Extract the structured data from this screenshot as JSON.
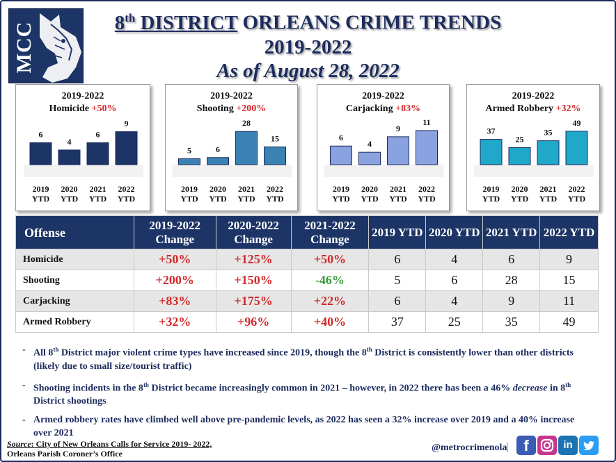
{
  "logo": {
    "text": "MCC"
  },
  "title": {
    "line1_sup": "th",
    "line1_district": "8",
    "line1_district_word": " DISTRICT",
    "line1_rest": " ORLEANS CRIME TRENDS",
    "line2": "2019-2022",
    "line3": "As of August 28, 2022"
  },
  "chart_data": [
    {
      "type": "bar",
      "title": "2019-2022",
      "subtitle": "Homicide",
      "change": "+50%",
      "categories": [
        "2019 YTD",
        "2020 YTD",
        "2021 YTD",
        "2022 YTD"
      ],
      "values": [
        6,
        4,
        6,
        9
      ],
      "ylim": [
        0,
        11
      ],
      "bar_color": "#1d3466"
    },
    {
      "type": "bar",
      "title": "2019-2022",
      "subtitle": "Shooting",
      "change": "+200%",
      "categories": [
        "2019 YTD",
        "2020 YTD",
        "2021 YTD",
        "2022 YTD"
      ],
      "values": [
        5,
        6,
        28,
        15
      ],
      "ylim": [
        0,
        34
      ],
      "bar_color": "#3a82b4"
    },
    {
      "type": "bar",
      "title": "2019-2022",
      "subtitle": "Carjacking",
      "change": "+83%",
      "categories": [
        "2019 YTD",
        "2020 YTD",
        "2021 YTD",
        "2022 YTD"
      ],
      "values": [
        6,
        4,
        9,
        11
      ],
      "ylim": [
        0,
        13
      ],
      "bar_color": "#8aa3e0"
    },
    {
      "type": "bar",
      "title": "2019-2022",
      "subtitle": "Armed Robbery",
      "change": "+32%",
      "categories": [
        "2019 YTD",
        "2020 YTD",
        "2021 YTD",
        "2022 YTD"
      ],
      "values": [
        37,
        25,
        35,
        49
      ],
      "ylim": [
        0,
        59
      ],
      "bar_color": "#1fa8c9"
    }
  ],
  "table": {
    "headers": [
      "Offense",
      "2019-2022 Change",
      "2020-2022 Change",
      "2021-2022 Change",
      "2019 YTD",
      "2020 YTD",
      "2021 YTD",
      "2022 YTD"
    ],
    "rows": [
      [
        "Homicide",
        "+50%",
        "+125%",
        "+50%",
        "6",
        "4",
        "6",
        "9"
      ],
      [
        "Shooting",
        "+200%",
        "+150%",
        "-46%",
        "5",
        "6",
        "28",
        "15"
      ],
      [
        "Carjacking",
        "+83%",
        "+175%",
        "+22%",
        "6",
        "4",
        "9",
        "11"
      ],
      [
        "Armed Robbery",
        "+32%",
        "+96%",
        "+40%",
        "37",
        "25",
        "35",
        "49"
      ]
    ]
  },
  "notes": {
    "n1_a": "All 8",
    "n1_sup1": "th",
    "n1_b": " District major violent crime types have increased since 2019, though the 8",
    "n1_sup2": "th",
    "n1_c": " District is consistently lower than other districts (likely due to small size/tourist traffic)",
    "n2_a": "Shooting incidents in the 8",
    "n2_sup1": "th",
    "n2_b": " District became increasingly common in 2021 – however, in 2022 there has been a 46% ",
    "n2_em": "decrease",
    "n2_c": " in 8",
    "n2_sup2": "th",
    "n2_d": " District shootings",
    "n3": "Armed robbery rates have climbed well above pre-pandemic levels, as 2022 has seen a 32% increase over 2019 and a 40% increase over 2021"
  },
  "footer": {
    "source_label": "Source",
    "source_text": ": City of New Orleans Calls for Service 2019- 2022,",
    "source_line2": "Orleans Parish Coroner’s Office",
    "handle": "@metrocrimenola",
    "separator": "|",
    "facebook": "f",
    "linkedin": "in"
  },
  "icons": [
    "wolf-logo",
    "facebook-icon",
    "instagram-icon",
    "linkedin-icon",
    "twitter-icon"
  ]
}
